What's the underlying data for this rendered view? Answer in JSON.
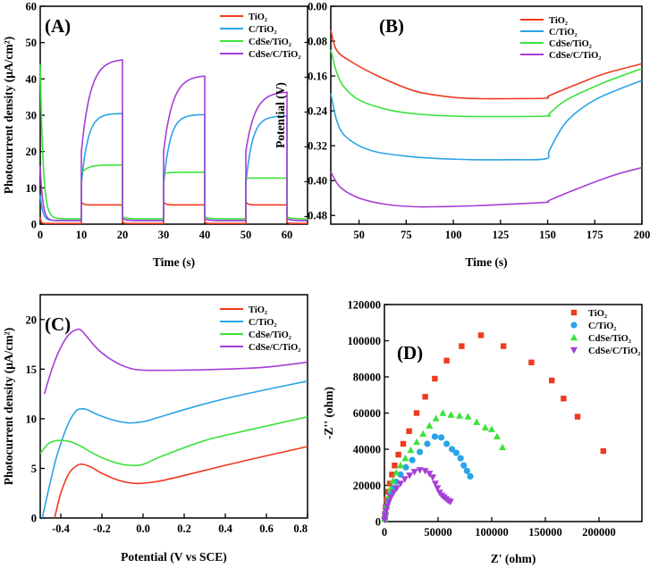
{
  "figure": {
    "colors": {
      "TiO2": "#ef3a1f",
      "C/TiO2": "#2ba3e6",
      "CdSe/TiO2": "#3de23a",
      "CdSe/C/TiO2": "#a63ed6"
    }
  },
  "chart_data": [
    {
      "id": "A",
      "panel_label": "(A)",
      "type": "line",
      "xlabel": "Time (s)",
      "ylabel": "Photocurrent density (μA/cm²)",
      "xlim": [
        0,
        65
      ],
      "ylim": [
        0,
        60
      ],
      "xticks": [
        "0",
        "10",
        "20",
        "30",
        "40",
        "50",
        "60"
      ],
      "yticks": [
        "0",
        "10",
        "20",
        "30",
        "40",
        "50",
        "60"
      ],
      "legend": [
        "TiO₂",
        "C/TiO₂",
        "CdSe/TiO₂",
        "CdSe/C/TiO₂"
      ],
      "series": [
        {
          "name": "TiO₂",
          "color": "#ef3a1f",
          "on_level": 5.3,
          "off_level": 0.2,
          "start": 2.0
        },
        {
          "name": "C/TiO₂",
          "color": "#2ba3e6",
          "on_level": [
            30.5,
            30.2,
            29.8
          ],
          "on_start": 11.0,
          "off_level": 1.0,
          "start": 8.0
        },
        {
          "name": "CdSe/TiO₂",
          "color": "#3de23a",
          "on_level": [
            16.3,
            14.3,
            12.7
          ],
          "on_start": 14.0,
          "off_level": 1.5,
          "start": 44.0
        },
        {
          "name": "CdSe/C/TiO₂",
          "color": "#a63ed6",
          "on_level": [
            45.5,
            41.0,
            36.5
          ],
          "on_start": 20.0,
          "off_level": 1.0,
          "start": 16.0
        }
      ]
    },
    {
      "id": "B",
      "panel_label": "(B)",
      "type": "line",
      "xlabel": "Time (s)",
      "ylabel": "Potential (V)",
      "xlim": [
        35,
        200
      ],
      "ylim": [
        -0.5,
        0
      ],
      "xticks": [
        "50",
        "75",
        "100",
        "125",
        "150",
        "175",
        "200"
      ],
      "yticks": [
        "0.00",
        "-0.08",
        "-0.16",
        "-0.24",
        "-0.32",
        "-0.40",
        "-0.48"
      ],
      "legend": [
        "TiO₂",
        "C/TiO₂",
        "CdSe/TiO₂",
        "CdSe/C/TiO₂"
      ],
      "series": [
        {
          "name": "TiO₂",
          "color": "#ef3a1f",
          "x": [
            35,
            38,
            45,
            60,
            80,
            100,
            115,
            130,
            149,
            151,
            165,
            180,
            200
          ],
          "y": [
            -0.055,
            -0.1,
            -0.125,
            -0.16,
            -0.195,
            -0.209,
            -0.212,
            -0.212,
            -0.211,
            -0.205,
            -0.18,
            -0.155,
            -0.132
          ]
        },
        {
          "name": "C/TiO₂",
          "color": "#2ba3e6",
          "x": [
            35,
            38,
            42,
            50,
            60,
            75,
            90,
            110,
            130,
            149,
            151,
            160,
            175,
            200
          ],
          "y": [
            -0.2,
            -0.26,
            -0.295,
            -0.32,
            -0.335,
            -0.344,
            -0.349,
            -0.352,
            -0.352,
            -0.35,
            -0.33,
            -0.265,
            -0.215,
            -0.17
          ]
        },
        {
          "name": "CdSe/TiO₂",
          "color": "#3de23a",
          "x": [
            35,
            38,
            42,
            50,
            65,
            80,
            100,
            120,
            149,
            151,
            160,
            180,
            200
          ],
          "y": [
            -0.1,
            -0.15,
            -0.185,
            -0.215,
            -0.237,
            -0.247,
            -0.252,
            -0.253,
            -0.252,
            -0.246,
            -0.215,
            -0.175,
            -0.143
          ]
        },
        {
          "name": "CdSe/C/TiO₂",
          "color": "#a63ed6",
          "x": [
            35,
            40,
            50,
            65,
            80,
            90,
            110,
            130,
            149,
            151,
            165,
            185,
            200
          ],
          "y": [
            -0.38,
            -0.415,
            -0.44,
            -0.455,
            -0.46,
            -0.46,
            -0.458,
            -0.454,
            -0.45,
            -0.445,
            -0.42,
            -0.388,
            -0.37
          ]
        }
      ]
    },
    {
      "id": "C",
      "panel_label": "(C)",
      "type": "line",
      "xlabel": "Potential (V vs SCE)",
      "ylabel": "Photocurrent density (μA/cm²)",
      "xlim": [
        -0.5,
        0.8
      ],
      "ylim": [
        0,
        22.5
      ],
      "xticks": [
        "-0.4",
        "-0.2",
        "0.0",
        "0.2",
        "0.4",
        "0.6",
        "0.8"
      ],
      "yticks": [
        "0",
        "5",
        "10",
        "15",
        "20"
      ],
      "legend": [
        "TiO₂",
        "C/TiO₂",
        "CdSe/TiO₂",
        "CdSe/C/TiO₂"
      ],
      "series": [
        {
          "name": "TiO₂",
          "color": "#ef3a1f",
          "x": [
            -0.43,
            -0.4,
            -0.36,
            -0.32,
            -0.29,
            -0.25,
            -0.2,
            -0.12,
            -0.05,
            0.0,
            0.1,
            0.3,
            0.5,
            0.8
          ],
          "y": [
            0,
            2.5,
            4.5,
            5.3,
            5.4,
            5.1,
            4.5,
            3.8,
            3.5,
            3.5,
            3.8,
            4.8,
            5.8,
            7.2
          ]
        },
        {
          "name": "C/TiO₂",
          "color": "#2ba3e6",
          "x": [
            -0.49,
            -0.46,
            -0.42,
            -0.37,
            -0.33,
            -0.3,
            -0.27,
            -0.22,
            -0.15,
            -0.08,
            -0.04,
            0.02,
            0.1,
            0.3,
            0.5,
            0.8
          ],
          "y": [
            0,
            2.8,
            6.2,
            9.2,
            10.7,
            11.0,
            10.9,
            10.4,
            9.9,
            9.6,
            9.6,
            9.8,
            10.3,
            11.5,
            12.5,
            13.8
          ]
        },
        {
          "name": "CdSe/TiO₂",
          "color": "#3de23a",
          "x": [
            -0.5,
            -0.46,
            -0.42,
            -0.38,
            -0.34,
            -0.3,
            -0.25,
            -0.18,
            -0.1,
            -0.05,
            0.0,
            0.1,
            0.3,
            0.5,
            0.8
          ],
          "y": [
            6.5,
            7.5,
            7.8,
            7.8,
            7.6,
            7.2,
            6.6,
            5.9,
            5.4,
            5.3,
            5.4,
            6.3,
            7.8,
            8.8,
            10.2
          ]
        },
        {
          "name": "CdSe/C/TiO₂",
          "color": "#a63ed6",
          "x": [
            -0.48,
            -0.44,
            -0.4,
            -0.36,
            -0.32,
            -0.3,
            -0.27,
            -0.22,
            -0.15,
            -0.08,
            0.0,
            0.2,
            0.4,
            0.6,
            0.8
          ],
          "y": [
            12.5,
            15.2,
            17.2,
            18.5,
            19.0,
            18.9,
            18.2,
            17.0,
            15.9,
            15.2,
            14.9,
            14.9,
            15.0,
            15.2,
            15.7
          ]
        }
      ]
    },
    {
      "id": "D",
      "panel_label": "(D)",
      "type": "scatter",
      "xlabel": "Z' (ohm)",
      "ylabel": "-Z'' (ohm)",
      "xlim": [
        0,
        240000
      ],
      "ylim": [
        0,
        120000
      ],
      "xticks": [
        "0",
        "50000",
        "100000",
        "150000",
        "200000"
      ],
      "yticks": [
        "0",
        "20000",
        "40000",
        "60000",
        "80000",
        "100000",
        "120000"
      ],
      "legend": [
        "TiO₂",
        "C/TiO₂",
        "CdSe/TiO₂",
        "CdSe/C/TiO₂"
      ],
      "series": [
        {
          "name": "TiO₂",
          "color": "#ef3a1f",
          "marker": "square",
          "x": [
            200,
            600,
            1200,
            2200,
            3500,
            5000,
            7000,
            9500,
            13000,
            17500,
            23000,
            30000,
            38000,
            47000,
            58000,
            72000,
            90000,
            111000,
            137000,
            156000,
            167000,
            180000,
            204000
          ],
          "y": [
            1500,
            4500,
            8000,
            12000,
            16500,
            21000,
            26000,
            31000,
            37000,
            43000,
            50000,
            60000,
            69000,
            79000,
            89000,
            97000,
            103000,
            97000,
            88000,
            78000,
            68000,
            58000,
            39000
          ]
        },
        {
          "name": "C/TiO₂",
          "color": "#2ba3e6",
          "marker": "circle",
          "x": [
            300,
            1000,
            2000,
            3500,
            5500,
            8000,
            11000,
            15000,
            20000,
            26000,
            33000,
            40000,
            47000,
            53000,
            58000,
            63000,
            67000,
            71000,
            74000,
            77000,
            80000
          ],
          "y": [
            1500,
            4500,
            8000,
            11500,
            15000,
            18500,
            22000,
            26000,
            30000,
            34000,
            38500,
            43000,
            47000,
            46500,
            43000,
            40000,
            38000,
            35000,
            31000,
            28000,
            25000
          ]
        },
        {
          "name": "CdSe/TiO₂",
          "color": "#3de23a",
          "marker": "triangle",
          "x": [
            300,
            1000,
            2000,
            3500,
            5500,
            8000,
            11000,
            15000,
            19500,
            24500,
            30000,
            36000,
            42000,
            48000,
            54500,
            62000,
            70000,
            78000,
            86000,
            94000,
            100000,
            105000,
            110000
          ],
          "y": [
            1500,
            5000,
            9000,
            13500,
            18000,
            22500,
            27000,
            31000,
            35000,
            39500,
            44000,
            48500,
            53000,
            57000,
            60000,
            59000,
            58500,
            58000,
            55000,
            52000,
            51000,
            47000,
            41000
          ]
        },
        {
          "name": "CdSe/C/TiO₂",
          "color": "#a63ed6",
          "marker": "triangle-down",
          "x": [
            300,
            800,
            1500,
            2500,
            4000,
            6000,
            8500,
            11500,
            15000,
            19000,
            23500,
            28000,
            33000,
            38000,
            42000,
            45000,
            47500,
            49500,
            51500,
            53500,
            55500,
            57500,
            59500,
            61500
          ],
          "y": [
            1000,
            3500,
            6000,
            8500,
            11000,
            13500,
            16000,
            18500,
            21000,
            23500,
            25500,
            27500,
            28500,
            28000,
            26500,
            24500,
            21000,
            18500,
            16000,
            14500,
            13500,
            12500,
            11500,
            11000
          ]
        }
      ]
    }
  ]
}
